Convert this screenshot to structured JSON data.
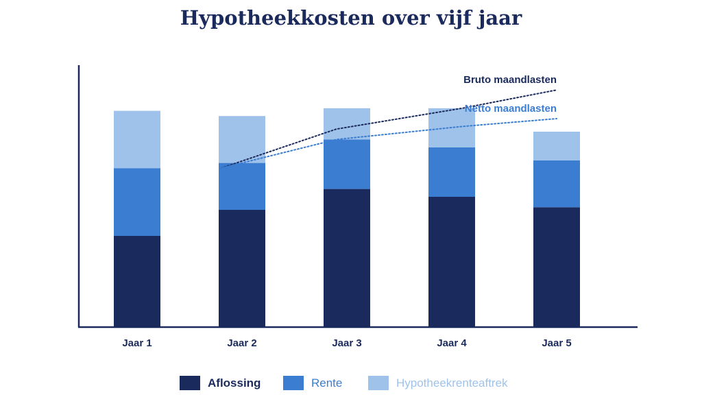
{
  "chart_data": {
    "type": "bar",
    "stacked": true,
    "title": "Hypotheekkosten over vijf jaar",
    "xlabel": "",
    "ylabel": "",
    "categories": [
      "Jaar 1",
      "Jaar 2",
      "Jaar 3",
      "Jaar 4",
      "Jaar 5"
    ],
    "ylim": [
      0,
      100
    ],
    "grid": false,
    "legend_position": "bottom",
    "series": [
      {
        "name": "Aflossing",
        "color": "#1b2a5c",
        "values": [
          35,
          45,
          53,
          50,
          46
        ]
      },
      {
        "name": "Rente",
        "color": "#3b7dd0",
        "values": [
          26,
          18,
          19,
          19,
          18
        ]
      },
      {
        "name": "Hypotheekrenteaftrek",
        "color": "#9fc2ea",
        "values": [
          22,
          18,
          12,
          15,
          11
        ]
      }
    ],
    "lines": [
      {
        "name": "Bruto maandlasten",
        "color": "#1b2a5c",
        "style": "dotted",
        "x": [
          1.8,
          2.9,
          4.1,
          5.0
        ],
        "values": [
          61,
          76,
          84,
          91
        ]
      },
      {
        "name": "Netto maandlasten",
        "color": "#3b7dd0",
        "style": "dotted",
        "x": [
          1.8,
          2.9,
          4.1,
          5.0
        ],
        "values": [
          61,
          72,
          77,
          80
        ]
      }
    ]
  }
}
